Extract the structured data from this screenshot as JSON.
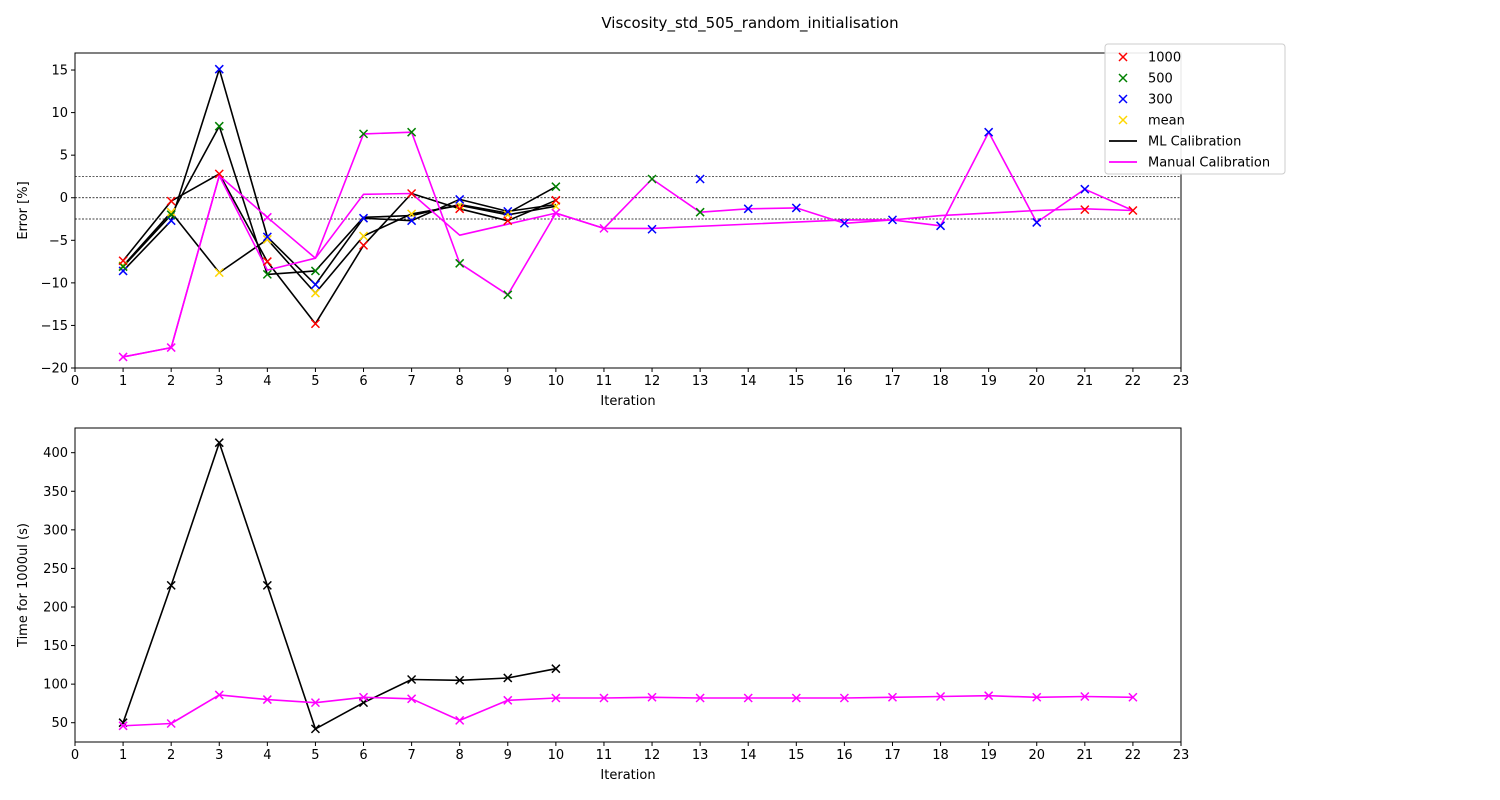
{
  "figure_title": "Viscosity_std_505_random_initialisation",
  "colors": {
    "r1000": "#ff0000",
    "r500": "#008000",
    "r300": "#0000ff",
    "mean": "#ffd700",
    "ml": "#000000",
    "manual": "#ff00ff",
    "refline": "#000000"
  },
  "chart_data": [
    {
      "type": "scatter",
      "title": "",
      "xlabel": "Iteration",
      "ylabel": "Error [%]",
      "xlim": [
        0,
        23
      ],
      "ylim": [
        -20,
        17
      ],
      "xticks": [
        0,
        1,
        2,
        3,
        4,
        5,
        6,
        7,
        8,
        9,
        10,
        11,
        12,
        13,
        14,
        15,
        16,
        17,
        18,
        19,
        20,
        21,
        22,
        23
      ],
      "yticks": [
        -20,
        -15,
        -10,
        -5,
        0,
        5,
        10,
        15
      ],
      "ytick_labels": [
        "−20",
        "−15",
        "−10",
        "−5",
        "0",
        "5",
        "10",
        "15"
      ],
      "reference_lines": [
        2.5,
        0,
        -2.5
      ],
      "legend": {
        "placement": "top-right",
        "entries": [
          {
            "label": "1000",
            "kind": "marker",
            "color_key": "r1000"
          },
          {
            "label": "500",
            "kind": "marker",
            "color_key": "r500"
          },
          {
            "label": "300",
            "kind": "marker",
            "color_key": "r300"
          },
          {
            "label": "mean",
            "kind": "marker",
            "color_key": "mean"
          },
          {
            "label": "ML Calibration",
            "kind": "line",
            "color_key": "ml"
          },
          {
            "label": "Manual Calibration",
            "kind": "line",
            "color_key": "manual"
          }
        ]
      },
      "ml_lines": [
        {
          "x": [
            1,
            2,
            3,
            4,
            5,
            6,
            7,
            8,
            9,
            10
          ],
          "y": [
            -7.4,
            -0.4,
            2.8,
            -7.5,
            -14.8,
            -5.6,
            0.5,
            -1.3,
            -2.7,
            -0.3
          ]
        },
        {
          "x": [
            1,
            2,
            3,
            4,
            5,
            6,
            7,
            8,
            9,
            10
          ],
          "y": [
            -8.1,
            -2.0,
            8.4,
            -9.0,
            -8.6,
            -2.3,
            -2.1,
            -0.8,
            -1.8,
            1.3
          ]
        },
        {
          "x": [
            1,
            2,
            3,
            4,
            5,
            6,
            7,
            8,
            9,
            10
          ],
          "y": [
            -8.6,
            -2.7,
            15.1,
            -4.6,
            -10.2,
            -2.4,
            -2.7,
            -0.2,
            -1.6,
            -0.8
          ]
        },
        {
          "x": [
            1,
            2,
            3,
            4,
            5,
            6,
            7,
            8,
            9,
            10
          ],
          "y": [
            -8.0,
            -1.7,
            -8.8,
            -4.9,
            -11.2,
            -4.5,
            -1.9,
            -0.9,
            -2.0,
            -1.0
          ]
        }
      ],
      "manual_line": {
        "x": [
          1,
          2,
          3,
          4,
          5,
          6,
          7,
          8,
          9,
          10,
          11,
          12,
          13,
          14,
          15,
          16,
          17,
          18,
          19,
          20,
          21,
          22
        ],
        "y": [
          -18.7,
          -17.6,
          2.6,
          -8.5,
          -7.1,
          7.5,
          7.7,
          -7.7,
          -11.4,
          -1.8,
          -3.6,
          2.2,
          -1.7,
          -1.3,
          -1.2,
          -3.0,
          -2.6,
          -3.3,
          7.7,
          -2.9,
          1.0,
          -1.5
        ]
      },
      "manual_series2": {
        "x": [
          1,
          2,
          3,
          4,
          5,
          6,
          7,
          8,
          10,
          11,
          12,
          16,
          17,
          18,
          20,
          21,
          22
        ],
        "y": [
          -18.7,
          -17.6,
          2.6,
          -2.3,
          -7.1,
          0.4,
          0.5,
          -4.4,
          -1.8,
          -3.6,
          -3.6,
          -2.6,
          -2.6,
          -2.1,
          -1.5,
          -1.3,
          -1.5
        ]
      },
      "scatter": {
        "r1000": {
          "x": [
            1,
            2,
            3,
            4,
            5,
            6,
            7,
            8,
            9,
            10,
            21,
            22
          ],
          "y": [
            -7.4,
            -0.4,
            2.8,
            -7.5,
            -14.8,
            -5.6,
            0.5,
            -1.3,
            -2.7,
            -0.3,
            -1.4,
            -1.5
          ]
        },
        "r500": {
          "x": [
            1,
            2,
            3,
            4,
            5,
            6,
            7,
            8,
            9,
            10,
            12,
            13
          ],
          "y": [
            -8.1,
            -2.0,
            8.4,
            -9.0,
            -8.6,
            7.5,
            7.7,
            -7.7,
            -11.4,
            1.3,
            2.2,
            -1.7
          ]
        },
        "r300": {
          "x": [
            1,
            2,
            3,
            4,
            5,
            6,
            7,
            8,
            9,
            12,
            13,
            14,
            15,
            16,
            17,
            18,
            19,
            20,
            21
          ],
          "y": [
            -8.6,
            -2.7,
            15.1,
            -4.6,
            -10.2,
            -2.4,
            -2.7,
            -0.2,
            -1.6,
            -3.7,
            2.2,
            -1.3,
            -1.2,
            -3.0,
            -2.6,
            -3.3,
            7.7,
            -2.9,
            1.0
          ]
        },
        "mean": {
          "x": [
            1,
            2,
            3,
            4,
            5,
            6,
            7,
            8,
            9,
            10
          ],
          "y": [
            -8.0,
            -1.7,
            -8.8,
            -4.9,
            -11.2,
            -4.5,
            -1.9,
            -0.9,
            -2.0,
            -1.0
          ]
        },
        "manual_pts": {
          "x": [
            1,
            2,
            4,
            10,
            11
          ],
          "y": [
            -18.7,
            -17.6,
            -2.3,
            -1.8,
            -3.6
          ]
        }
      }
    },
    {
      "type": "line",
      "title": "",
      "xlabel": "Iteration",
      "ylabel": "Time for 1000ul (s)",
      "xlim": [
        0,
        23
      ],
      "ylim": [
        25,
        432
      ],
      "xticks": [
        0,
        1,
        2,
        3,
        4,
        5,
        6,
        7,
        8,
        9,
        10,
        11,
        12,
        13,
        14,
        15,
        16,
        17,
        18,
        19,
        20,
        21,
        22,
        23
      ],
      "yticks": [
        50,
        100,
        150,
        200,
        250,
        300,
        350,
        400
      ],
      "series": [
        {
          "color_key": "ml",
          "x": [
            1,
            2,
            3,
            4,
            5,
            6,
            7,
            8,
            9,
            10
          ],
          "y": [
            50,
            228,
            413,
            228,
            42,
            76,
            106,
            105,
            108,
            120
          ]
        },
        {
          "color_key": "manual",
          "x": [
            1,
            2,
            3,
            4,
            5,
            6,
            7,
            8,
            9,
            10,
            11,
            12,
            13,
            14,
            15,
            16,
            17,
            18,
            19,
            20,
            21,
            22
          ],
          "y": [
            46,
            49,
            86,
            80,
            76,
            83,
            81,
            53,
            79,
            82,
            82,
            83,
            82,
            82,
            82,
            82,
            83,
            84,
            85,
            83,
            84,
            83
          ]
        }
      ]
    }
  ]
}
